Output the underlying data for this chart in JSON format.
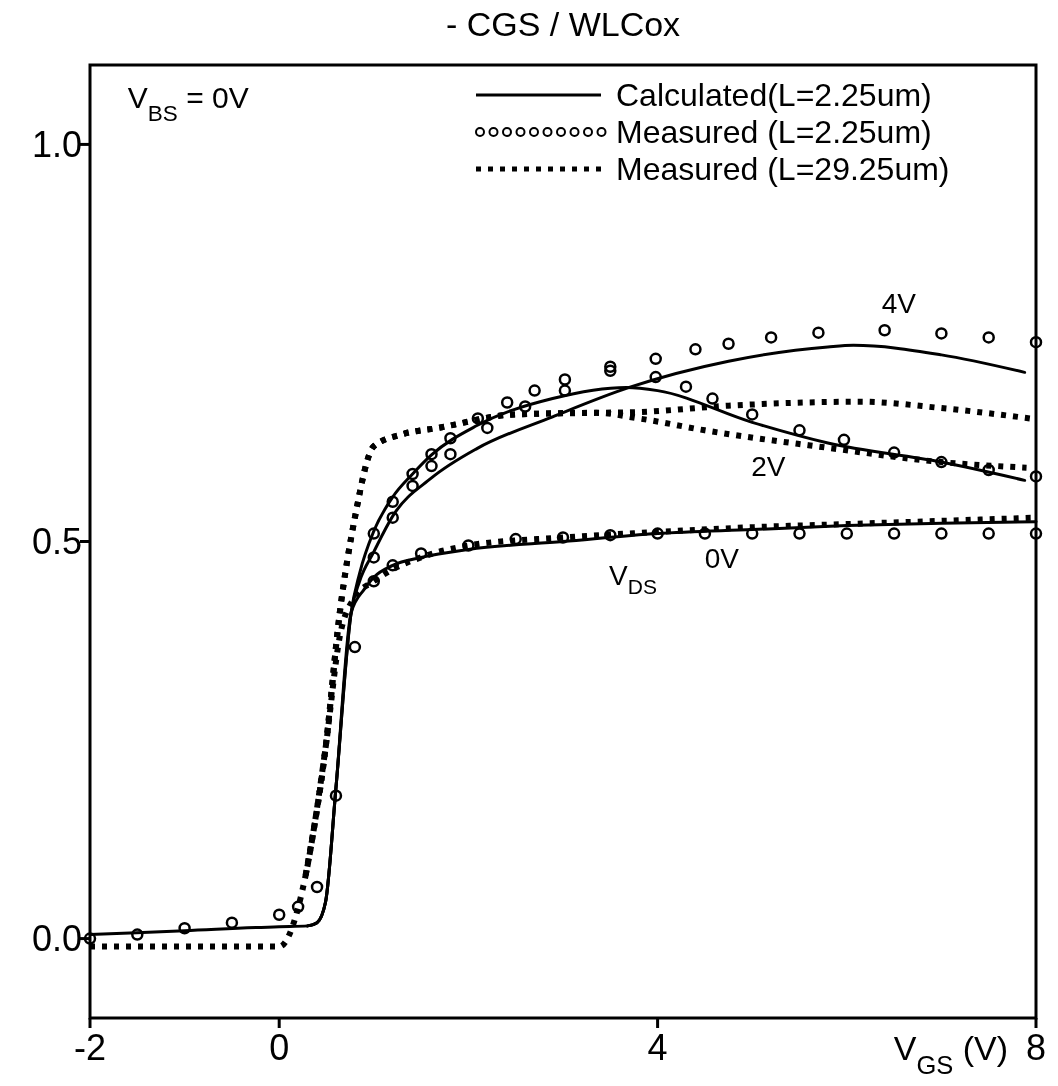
{
  "chart_data": {
    "type": "line",
    "title": "- CGS / WLCox",
    "xlabel": "V$_{GS}$ (V)",
    "xlim": [
      -2,
      8
    ],
    "ylim": [
      -0.1,
      1.1
    ],
    "xticks": [
      -2,
      0,
      4,
      8
    ],
    "yticks": [
      {
        "value": 0,
        "label": "0.0"
      },
      {
        "value": 0.5,
        "label": "0.5"
      },
      {
        "value": 1,
        "label": "1.0"
      }
    ],
    "grid": false,
    "legend": "top right",
    "annotations": [
      "V$_{BS}$ = 0V",
      "4V",
      "2V",
      "0V",
      "V$_{DS}$"
    ],
    "series": [
      {
        "name": "Calculated(L=2.25um)",
        "line_style": "solid",
        "color": "#000000",
        "x": [
          -2,
          -1,
          0,
          0.3,
          0.4,
          0.49,
          0.6,
          0.76,
          0.9,
          1.0,
          1.2,
          1.5,
          2,
          3,
          4,
          5,
          6,
          7,
          8
        ],
        "values": [
          0.005,
          0.01,
          0.015,
          0.016,
          0.02,
          0.046,
          0.19,
          0.41,
          0.44,
          0.455,
          0.47,
          0.48,
          0.49,
          0.5,
          0.51,
          0.515,
          0.52,
          0.523,
          0.525
        ]
      },
      {
        "line_style": "solid",
        "color": "#000000",
        "x": [
          0.3,
          0.4,
          0.49,
          0.6,
          0.76,
          0.85,
          1.0,
          1.2,
          1.41,
          1.61,
          2.09,
          2.89,
          3.67,
          4,
          5,
          5.8,
          7,
          7.88
        ],
        "values": [
          0.016,
          0.02,
          0.046,
          0.19,
          0.41,
          0.46,
          0.513,
          0.556,
          0.585,
          0.609,
          0.646,
          0.68,
          0.694,
          0.69,
          0.65,
          0.624,
          0.6,
          0.577
        ]
      },
      {
        "line_style": "solid",
        "color": "#000000",
        "x": [
          0.3,
          0.4,
          0.49,
          0.6,
          0.76,
          0.85,
          1.0,
          1.2,
          1.61,
          2.09,
          2.89,
          3.7,
          4.75,
          5.8,
          6.07,
          7,
          7.88
        ],
        "values": [
          0.016,
          0.02,
          0.046,
          0.19,
          0.41,
          0.45,
          0.487,
          0.532,
          0.58,
          0.617,
          0.657,
          0.694,
          0.727,
          0.745,
          0.747,
          0.735,
          0.713
        ]
      },
      {
        "name": "Measured (L=2.25um)",
        "type": "scatter",
        "marker": "circle",
        "color": "#000000",
        "x": [
          -2,
          -1.5,
          -1,
          -0.5,
          0,
          0.2,
          0.4,
          0.6,
          0.8,
          1.0,
          1.2,
          1.5,
          2,
          2.5,
          3,
          3.5,
          4,
          4.5,
          5,
          5.5,
          6,
          6.5,
          7,
          7.5,
          8
        ],
        "values": [
          0.0,
          0.005,
          0.013,
          0.02,
          0.03,
          0.04,
          0.065,
          0.18,
          0.367,
          0.45,
          0.47,
          0.485,
          0.495,
          0.503,
          0.505,
          0.508,
          0.51,
          0.51,
          0.51,
          0.51,
          0.51,
          0.51,
          0.51,
          0.51,
          0.51
        ]
      },
      {
        "type": "scatter",
        "marker": "circle",
        "color": "#000000",
        "x": [
          1.0,
          1.2,
          1.41,
          1.61,
          1.81,
          2.1,
          2.41,
          2.7,
          3.02,
          3.5,
          3.98,
          4.3,
          4.58,
          5,
          5.5,
          5.97,
          6.5,
          7,
          7.5,
          8
        ],
        "values": [
          0.51,
          0.55,
          0.585,
          0.61,
          0.63,
          0.655,
          0.675,
          0.69,
          0.704,
          0.715,
          0.707,
          0.695,
          0.68,
          0.66,
          0.64,
          0.628,
          0.612,
          0.6,
          0.59,
          0.582
        ]
      },
      {
        "type": "scatter",
        "marker": "circle",
        "color": "#000000",
        "x": [
          1.0,
          1.2,
          1.41,
          1.61,
          1.81,
          2.2,
          2.6,
          3.02,
          3.5,
          3.98,
          4.4,
          4.75,
          5.2,
          5.7,
          6.4,
          7,
          7.5,
          8
        ],
        "values": [
          0.48,
          0.53,
          0.57,
          0.595,
          0.61,
          0.643,
          0.67,
          0.69,
          0.72,
          0.73,
          0.742,
          0.749,
          0.757,
          0.763,
          0.766,
          0.762,
          0.757,
          0.751
        ]
      },
      {
        "name": "Measured (L=29.25um)",
        "line_style": "dotted",
        "color": "#000000",
        "x": [
          -2,
          -1,
          0,
          0.28,
          0.49,
          0.64,
          0.8,
          1.0,
          1.2,
          1.5,
          2,
          3,
          4,
          5,
          6,
          7,
          8
        ],
        "values": [
          -0.01,
          -0.01,
          -0.01,
          0.08,
          0.24,
          0.38,
          0.43,
          0.45,
          0.465,
          0.48,
          0.495,
          0.505,
          0.512,
          0.518,
          0.522,
          0.526,
          0.53
        ]
      },
      {
        "line_style": "dotted",
        "color": "#000000",
        "x": [
          0.28,
          0.49,
          0.64,
          0.8,
          1.0,
          1.3,
          1.68,
          2.49,
          3.35,
          3.8,
          4.5,
          5.8,
          7,
          7.9
        ],
        "values": [
          0.08,
          0.24,
          0.41,
          0.53,
          0.62,
          0.635,
          0.643,
          0.66,
          0.662,
          0.655,
          0.64,
          0.618,
          0.6,
          0.593
        ]
      },
      {
        "line_style": "dotted",
        "color": "#000000",
        "x": [
          0.28,
          0.49,
          0.64,
          0.8,
          1.0,
          1.3,
          1.68,
          2.49,
          3.35,
          3.8,
          4.75,
          6.15,
          7,
          8
        ],
        "values": [
          0.08,
          0.24,
          0.41,
          0.53,
          0.62,
          0.635,
          0.643,
          0.66,
          0.662,
          0.663,
          0.671,
          0.676,
          0.668,
          0.654
        ]
      }
    ]
  }
}
